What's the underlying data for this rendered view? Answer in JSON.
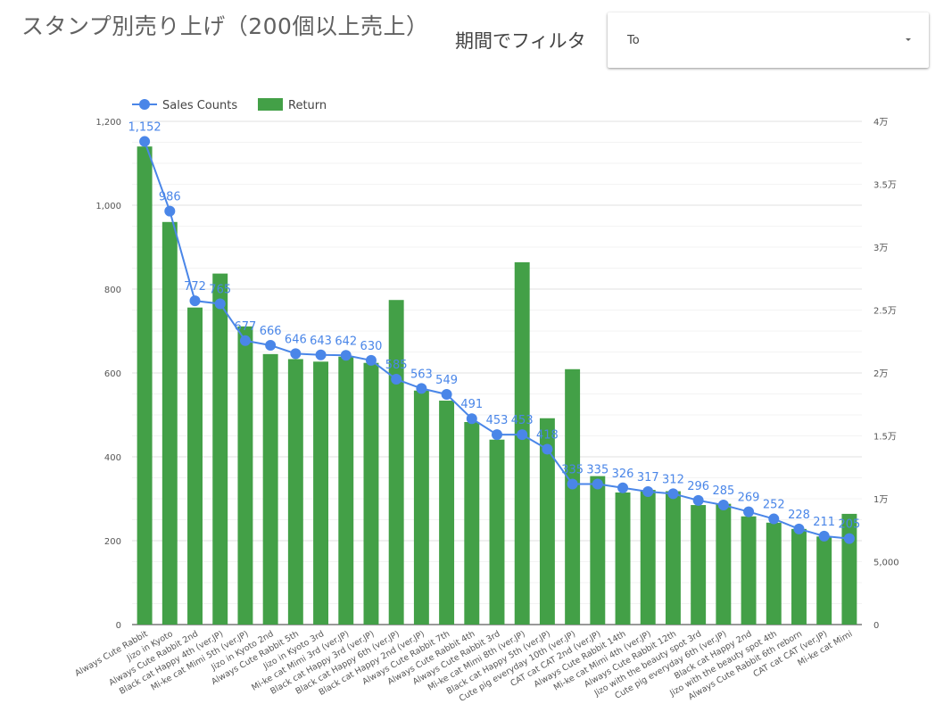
{
  "header": {
    "title": "スタンプ別売り上げ（200個以上売上）",
    "filter_label": "期間でフィルタ"
  },
  "filter": {
    "selected": "To"
  },
  "chart_data": {
    "type": "combo",
    "title": "スタンプ別売り上げ（200個以上売上）",
    "legend_position": "top-left",
    "grid": true,
    "categories": [
      "Always Cute Rabbit",
      "Jizo in Kyoto",
      "Always Cute Rabbit 2nd",
      "Black cat Happy 4th (ver.JP)",
      "Mi-ke cat Mimi 5th (ver.JP)",
      "Jizo in Kyoto 2nd",
      "Always Cute Rabbit 5th",
      "Jizo in Kyoto 3rd",
      "Mi-ke cat Mimi 3rd (ver.JP)",
      "Black cat Happy 3rd (ver.JP)",
      "Black cat Happy 6th (ver.JP)",
      "Black cat Happy 2nd (ver.JP)",
      "Always Cute Rabbit 7th",
      "Always Cute Rabbit 4th",
      "Always Cute Rabbit 3rd",
      "Mi-ke cat Mimi 8th (ver.JP)",
      "Black cat Happy 5th (ver.JP)",
      "Cute pig everyday 10th (ver.JP)",
      "CAT cat CAT 2nd (ver.JP)",
      "Always Cute Rabbit 14th",
      "Mi-ke cat Mimi 4th (ver.JP)",
      "Always Cute Rabbit 12th",
      "Jizo with the beauty spot 3rd",
      "Cute pig everyday 6th (ver.JP)",
      "Black cat Happy 2nd",
      "Jizo with the beauty spot 4th",
      "Always Cute Rabbit 6th reborn",
      "CAT cat CAT (ver.JP)",
      "Mi-ke cat Mimi"
    ],
    "series": [
      {
        "name": "Sales Counts",
        "type": "line",
        "axis": "left",
        "color": "#4a86e8",
        "values": [
          1152,
          986,
          772,
          765,
          677,
          666,
          646,
          643,
          642,
          630,
          585,
          563,
          549,
          491,
          453,
          453,
          418,
          335,
          335,
          326,
          317,
          312,
          296,
          285,
          269,
          252,
          228,
          211,
          205
        ],
        "labels": [
          "1,152",
          "986",
          "772",
          "765",
          "677",
          "666",
          "646",
          "643",
          "642",
          "630",
          "585",
          "563",
          "549",
          "491",
          "453",
          "453",
          "418",
          "335",
          "335",
          "326",
          "317",
          "312",
          "296",
          "285",
          "269",
          "252",
          "228",
          "211",
          "205"
        ]
      },
      {
        "name": "Return",
        "type": "bar",
        "axis": "right",
        "color": "#43a047",
        "values": [
          38000,
          32000,
          25200,
          27900,
          23700,
          21500,
          21100,
          20900,
          21300,
          20800,
          25800,
          18600,
          17800,
          16100,
          14700,
          28800,
          16400,
          20300,
          11800,
          10500,
          10700,
          10600,
          9500,
          9600,
          8600,
          8100,
          7600,
          7000,
          8800
        ]
      }
    ],
    "y_left": {
      "min": 0,
      "max": 1200,
      "ticks": [
        0,
        200,
        400,
        600,
        800,
        1000,
        1200
      ],
      "tick_labels": [
        "0",
        "200",
        "400",
        "600",
        "800",
        "1,000",
        "1,200"
      ]
    },
    "y_right": {
      "min": 0,
      "max": 40000,
      "ticks": [
        0,
        5000,
        10000,
        15000,
        20000,
        25000,
        30000,
        35000,
        40000
      ],
      "tick_labels": [
        "0",
        "5,000",
        "1万",
        "1.5万",
        "2万",
        "2.5万",
        "3万",
        "3.5万",
        "4万"
      ]
    }
  }
}
